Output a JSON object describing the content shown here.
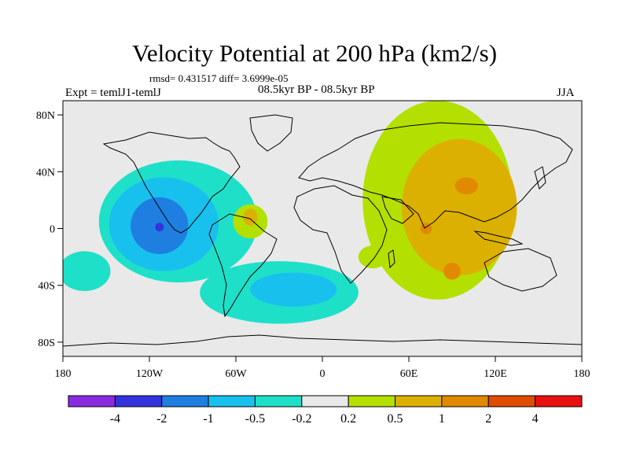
{
  "title": "Velocity Potential at 200 hPa (km2/s)",
  "stats": "rmsd= 0.431517 diff= 3.6999e-05",
  "experiment": "Expt = temlJ1-temlJ",
  "period": "08.5kyr BP - 08.5kyr BP",
  "season": "JJA",
  "map": {
    "background": "#e9e9e9",
    "lat_labels": [
      "80N",
      "40N",
      "0",
      "40S",
      "80S"
    ],
    "lat_values": [
      80,
      40,
      0,
      -40,
      -80
    ],
    "lon_labels": [
      "180",
      "120W",
      "60W",
      "0",
      "60E",
      "120E",
      "180"
    ],
    "lon_values": [
      -180,
      -120,
      -60,
      0,
      60,
      120,
      180
    ]
  },
  "colorbar": {
    "colors": [
      "#8a2be2",
      "#3333dd",
      "#1e7fe0",
      "#18c0ee",
      "#1ee0c8",
      "#e9e9e9",
      "#b4e000",
      "#dcb000",
      "#e08a00",
      "#e04c00",
      "#e81010"
    ],
    "labels": [
      "-4",
      "-2",
      "-1",
      "-0.5",
      "-0.2",
      "0.2",
      "0.5",
      "1",
      "2",
      "4"
    ]
  },
  "fields": [
    {
      "name": "pacific-low",
      "level": "-0.2",
      "color": "#1ee0c8",
      "lon": -100,
      "lat": 5,
      "rlon": 55,
      "rlat": 43
    },
    {
      "name": "pacific-low",
      "level": "-0.5",
      "color": "#18c0ee",
      "lon": -110,
      "lat": 3,
      "rlon": 38,
      "rlat": 33
    },
    {
      "name": "pacific-low",
      "level": "-1",
      "color": "#1e7fe0",
      "lon": -113,
      "lat": 2,
      "rlon": 20,
      "rlat": 20
    },
    {
      "name": "pacific-low",
      "level": "-2",
      "color": "#3333dd",
      "lon": -113,
      "lat": 1,
      "rlon": 3,
      "rlat": 3
    },
    {
      "name": "atlantic-south-low",
      "level": "-0.2",
      "color": "#1ee0c8",
      "lon": -30,
      "lat": -45,
      "rlon": 55,
      "rlat": 22
    },
    {
      "name": "atlantic-south-low",
      "level": "-0.5",
      "color": "#18c0ee",
      "lon": -20,
      "lat": -43,
      "rlon": 30,
      "rlat": 12
    },
    {
      "name": "west-pacific-low",
      "level": "-0.2",
      "color": "#1ee0c8",
      "lon": -165,
      "lat": -30,
      "rlon": 18,
      "rlat": 14
    },
    {
      "name": "asia-high",
      "level": "0.2",
      "color": "#b4e000",
      "lon": 80,
      "lat": 20,
      "rlon": 52,
      "rlat": 70
    },
    {
      "name": "asia-high",
      "level": "0.5",
      "color": "#dcb000",
      "lon": 95,
      "lat": 15,
      "rlon": 40,
      "rlat": 48
    },
    {
      "name": "asia-high",
      "level": "1",
      "color": "#e08a00",
      "lon": 100,
      "lat": 30,
      "rlon": 8,
      "rlat": 6
    },
    {
      "name": "asia-high",
      "level": "1",
      "color": "#e08a00",
      "lon": 90,
      "lat": -30,
      "rlon": 6,
      "rlat": 6
    },
    {
      "name": "asia-high",
      "level": "1",
      "color": "#e08a00",
      "lon": 72,
      "lat": 0,
      "rlon": 4,
      "rlat": 4
    },
    {
      "name": "south-america-high",
      "level": "0.2",
      "color": "#b4e000",
      "lon": -50,
      "lat": 5,
      "rlon": 12,
      "rlat": 12
    },
    {
      "name": "south-america-high",
      "level": "0.5",
      "color": "#dcb000",
      "lon": -50,
      "lat": 8,
      "rlon": 5,
      "rlat": 6
    },
    {
      "name": "indian-ocean-high",
      "level": "0.2",
      "color": "#b4e000",
      "lon": 35,
      "lat": -20,
      "rlon": 10,
      "rlat": 8
    }
  ]
}
